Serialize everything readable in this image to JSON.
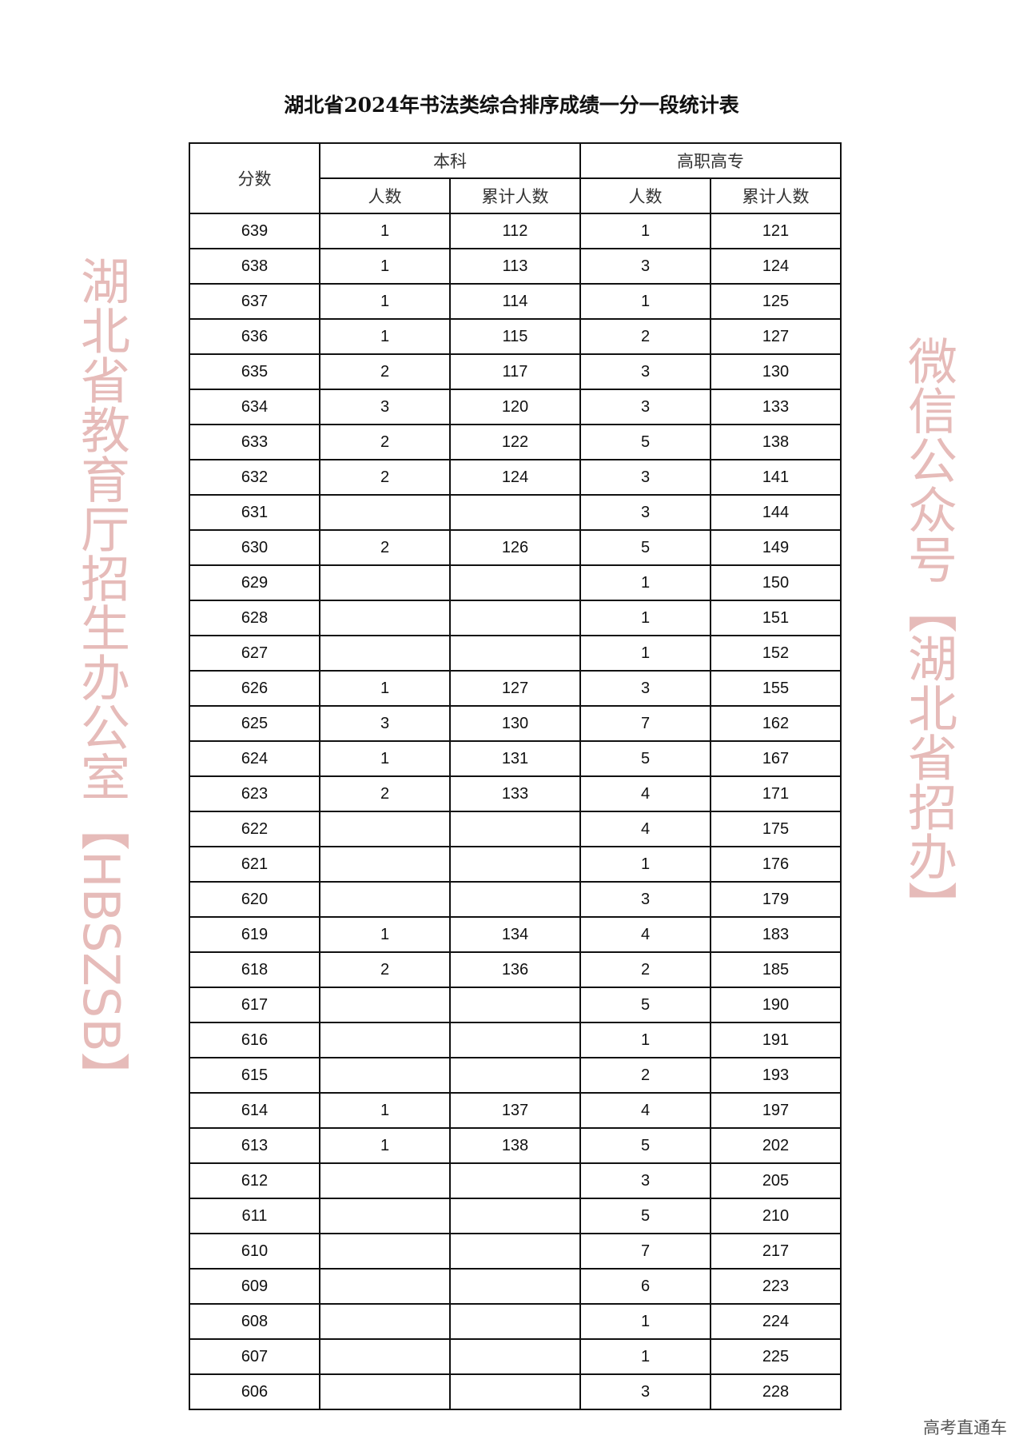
{
  "title": "湖北省2024年书法类综合排序成绩一分一段统计表",
  "headers": {
    "score": "分数",
    "benke": "本科",
    "gaozhi": "高职高专",
    "count": "人数",
    "cumulative": "累计人数"
  },
  "rows": [
    [
      "639",
      "1",
      "112",
      "1",
      "121"
    ],
    [
      "638",
      "1",
      "113",
      "3",
      "124"
    ],
    [
      "637",
      "1",
      "114",
      "1",
      "125"
    ],
    [
      "636",
      "1",
      "115",
      "2",
      "127"
    ],
    [
      "635",
      "2",
      "117",
      "3",
      "130"
    ],
    [
      "634",
      "3",
      "120",
      "3",
      "133"
    ],
    [
      "633",
      "2",
      "122",
      "5",
      "138"
    ],
    [
      "632",
      "2",
      "124",
      "3",
      "141"
    ],
    [
      "631",
      "",
      "",
      "3",
      "144"
    ],
    [
      "630",
      "2",
      "126",
      "5",
      "149"
    ],
    [
      "629",
      "",
      "",
      "1",
      "150"
    ],
    [
      "628",
      "",
      "",
      "1",
      "151"
    ],
    [
      "627",
      "",
      "",
      "1",
      "152"
    ],
    [
      "626",
      "1",
      "127",
      "3",
      "155"
    ],
    [
      "625",
      "3",
      "130",
      "7",
      "162"
    ],
    [
      "624",
      "1",
      "131",
      "5",
      "167"
    ],
    [
      "623",
      "2",
      "133",
      "4",
      "171"
    ],
    [
      "622",
      "",
      "",
      "4",
      "175"
    ],
    [
      "621",
      "",
      "",
      "1",
      "176"
    ],
    [
      "620",
      "",
      "",
      "3",
      "179"
    ],
    [
      "619",
      "1",
      "134",
      "4",
      "183"
    ],
    [
      "618",
      "2",
      "136",
      "2",
      "185"
    ],
    [
      "617",
      "",
      "",
      "5",
      "190"
    ],
    [
      "616",
      "",
      "",
      "1",
      "191"
    ],
    [
      "615",
      "",
      "",
      "2",
      "193"
    ],
    [
      "614",
      "1",
      "137",
      "4",
      "197"
    ],
    [
      "613",
      "1",
      "138",
      "5",
      "202"
    ],
    [
      "612",
      "",
      "",
      "3",
      "205"
    ],
    [
      "611",
      "",
      "",
      "5",
      "210"
    ],
    [
      "610",
      "",
      "",
      "7",
      "217"
    ],
    [
      "609",
      "",
      "",
      "6",
      "223"
    ],
    [
      "608",
      "",
      "",
      "1",
      "224"
    ],
    [
      "607",
      "",
      "",
      "1",
      "225"
    ],
    [
      "606",
      "",
      "",
      "3",
      "228"
    ]
  ],
  "watermark": {
    "line1": "湖北省教育厅招生办公室【HBSZSB】",
    "line2": "微信公众号【湖北省招办】",
    "color": "#cd7873"
  },
  "footer": "高考直通车"
}
